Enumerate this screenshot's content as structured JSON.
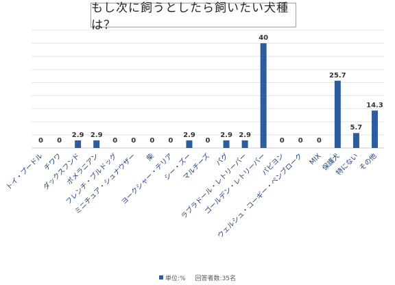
{
  "chart_data": {
    "type": "bar",
    "title": "もし次に飼うとしたら飼いたい犬種は？",
    "categories": [
      "トイ・プードル",
      "チワワ",
      "ダックスフンド",
      "ポメラニアン",
      "フレンチ・ブルドッグ",
      "ミニチュア・シュナウザー",
      "柴",
      "ヨークシャー・テリア",
      "シー・ズー",
      "マルチーズ",
      "パグ",
      "ラブラドール・レトリーバー",
      "ゴールデン・レトリーバー",
      "パピヨン",
      "ウェルシュ・コーギー・ペンブローク",
      "MIX",
      "保護犬",
      "特にない",
      "その他"
    ],
    "values": [
      0,
      0,
      2.9,
      2.9,
      0,
      0,
      0,
      0,
      2.9,
      0,
      2.9,
      2.9,
      40,
      0,
      0,
      0,
      25.7,
      5.7,
      14.3
    ],
    "data_labels": [
      "0",
      "0",
      "2.9",
      "2.9",
      "0",
      "0",
      "0",
      "0",
      "2.9",
      "0",
      "2.9",
      "2.9",
      "40",
      "0",
      "0",
      "0",
      "25.7",
      "5.7",
      "14.3"
    ],
    "ylim": [
      0,
      45
    ],
    "grid": true,
    "bar_color": "#2e5d9e",
    "legend": {
      "series_label": "単位:%",
      "note": "回答者数:35名",
      "placement": "bottom"
    }
  }
}
